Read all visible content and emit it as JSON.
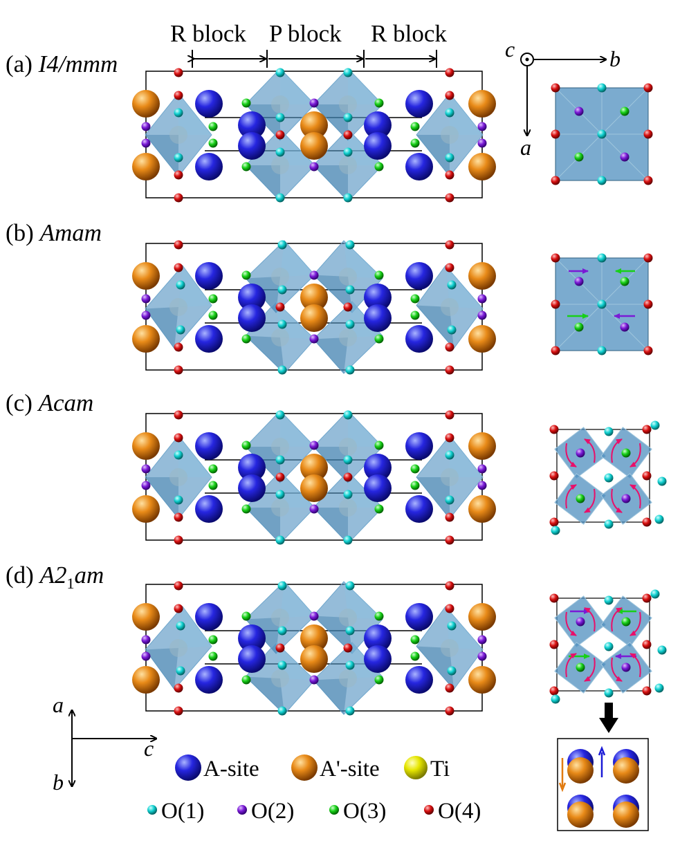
{
  "header": {
    "r_block_left": "R block",
    "p_block": "P block",
    "r_block_right": "R block"
  },
  "panels": [
    {
      "prefix": "(a) ",
      "group": "I4/mmm"
    },
    {
      "prefix": "(b) ",
      "group": "Amam"
    },
    {
      "prefix": "(c) ",
      "group": "Acam"
    },
    {
      "prefix": "(d) ",
      "group": "A2",
      "group_sub": "1",
      "group_tail": "am"
    }
  ],
  "axes_top": {
    "c": "c",
    "b": "b",
    "a": "a"
  },
  "axes_bottom": {
    "a": "a",
    "c": "c",
    "b": "b"
  },
  "legend": {
    "a_site": "A-site",
    "a_prime_site": "A'-site",
    "ti": "Ti",
    "o1": "O(1)",
    "o2": "O(2)",
    "o3": "O(3)",
    "o4": "O(4)"
  },
  "colors": {
    "a_site": "#1a1ad6",
    "a_prime_site": "#e07a10",
    "ti": "#e6e600",
    "o1": "#10d6d6",
    "o2": "#7a1ad6",
    "o3": "#1ad61a",
    "o4": "#d61010",
    "octahedron": "#4f8fbf",
    "arrow_magenta": "#e8106a"
  }
}
